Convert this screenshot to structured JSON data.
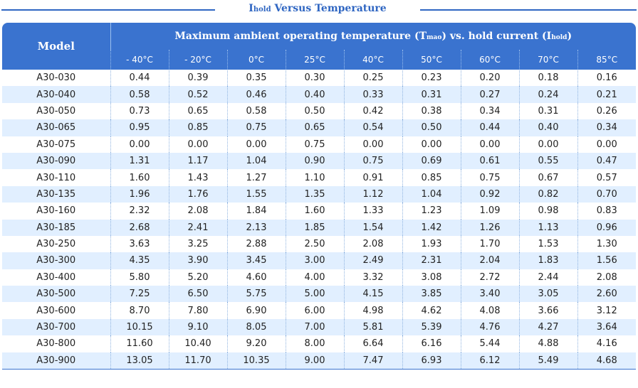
{
  "title": {
    "sub": "hold",
    "main": "Versus Temperature",
    "prefix": "I"
  },
  "table": {
    "model_header": "Model",
    "group_header": {
      "part1": "Maximum ambient operating temperature (T",
      "sub1": "mao",
      "part2": ") vs. hold current (I",
      "sub2": "hold",
      "part3": ")"
    },
    "temps": [
      "- 40°C",
      "- 20°C",
      "0°C",
      "25°C",
      "40°C",
      "50°C",
      "60°C",
      "70°C",
      "85°C"
    ],
    "rows": [
      [
        "A30-030",
        "0.44",
        "0.39",
        "0.35",
        "0.30",
        "0.25",
        "0.23",
        "0.20",
        "0.18",
        "0.16"
      ],
      [
        "A30-040",
        "0.58",
        "0.52",
        "0.46",
        "0.40",
        "0.33",
        "0.31",
        "0.27",
        "0.24",
        "0.21"
      ],
      [
        "A30-050",
        "0.73",
        "0.65",
        "0.58",
        "0.50",
        "0.42",
        "0.38",
        "0.34",
        "0.31",
        "0.26"
      ],
      [
        "A30-065",
        "0.95",
        "0.85",
        "0.75",
        "0.65",
        "0.54",
        "0.50",
        "0.44",
        "0.40",
        "0.34"
      ],
      [
        "A30-075",
        "0.00",
        "0.00",
        "0.00",
        "0.75",
        "0.00",
        "0.00",
        "0.00",
        "0.00",
        "0.00"
      ],
      [
        "A30-090",
        "1.31",
        "1.17",
        "1.04",
        "0.90",
        "0.75",
        "0.69",
        "0.61",
        "0.55",
        "0.47"
      ],
      [
        "A30-110",
        "1.60",
        "1.43",
        "1.27",
        "1.10",
        "0.91",
        "0.85",
        "0.75",
        "0.67",
        "0.57"
      ],
      [
        "A30-135",
        "1.96",
        "1.76",
        "1.55",
        "1.35",
        "1.12",
        "1.04",
        "0.92",
        "0.82",
        "0.70"
      ],
      [
        "A30-160",
        "2.32",
        "2.08",
        "1.84",
        "1.60",
        "1.33",
        "1.23",
        "1.09",
        "0.98",
        "0.83"
      ],
      [
        "A30-185",
        "2.68",
        "2.41",
        "2.13",
        "1.85",
        "1.54",
        "1.42",
        "1.26",
        "1.13",
        "0.96"
      ],
      [
        "A30-250",
        "3.63",
        "3.25",
        "2.88",
        "2.50",
        "2.08",
        "1.93",
        "1.70",
        "1.53",
        "1.30"
      ],
      [
        "A30-300",
        "4.35",
        "3.90",
        "3.45",
        "3.00",
        "2.49",
        "2.31",
        "2.04",
        "1.83",
        "1.56"
      ],
      [
        "A30-400",
        "5.80",
        "5.20",
        "4.60",
        "4.00",
        "3.32",
        "3.08",
        "2.72",
        "2.44",
        "2.08"
      ],
      [
        "A30-500",
        "7.25",
        "6.50",
        "5.75",
        "5.00",
        "4.15",
        "3.85",
        "3.40",
        "3.05",
        "2.60"
      ],
      [
        "A30-600",
        "8.70",
        "7.80",
        "6.90",
        "6.00",
        "4.98",
        "4.62",
        "4.08",
        "3.66",
        "3.12"
      ],
      [
        "A30-700",
        "10.15",
        "9.10",
        "8.05",
        "7.00",
        "5.81",
        "5.39",
        "4.76",
        "4.27",
        "3.64"
      ],
      [
        "A30-800",
        "11.60",
        "10.40",
        "9.20",
        "8.00",
        "6.64",
        "6.16",
        "5.44",
        "4.88",
        "4.16"
      ],
      [
        "A30-900",
        "13.05",
        "11.70",
        "10.35",
        "9.00",
        "7.47",
        "6.93",
        "6.12",
        "5.49",
        "4.68"
      ]
    ]
  },
  "colors": {
    "accent": "#3a73cf",
    "title": "#2f66c2",
    "stripe": "#e1efff"
  }
}
